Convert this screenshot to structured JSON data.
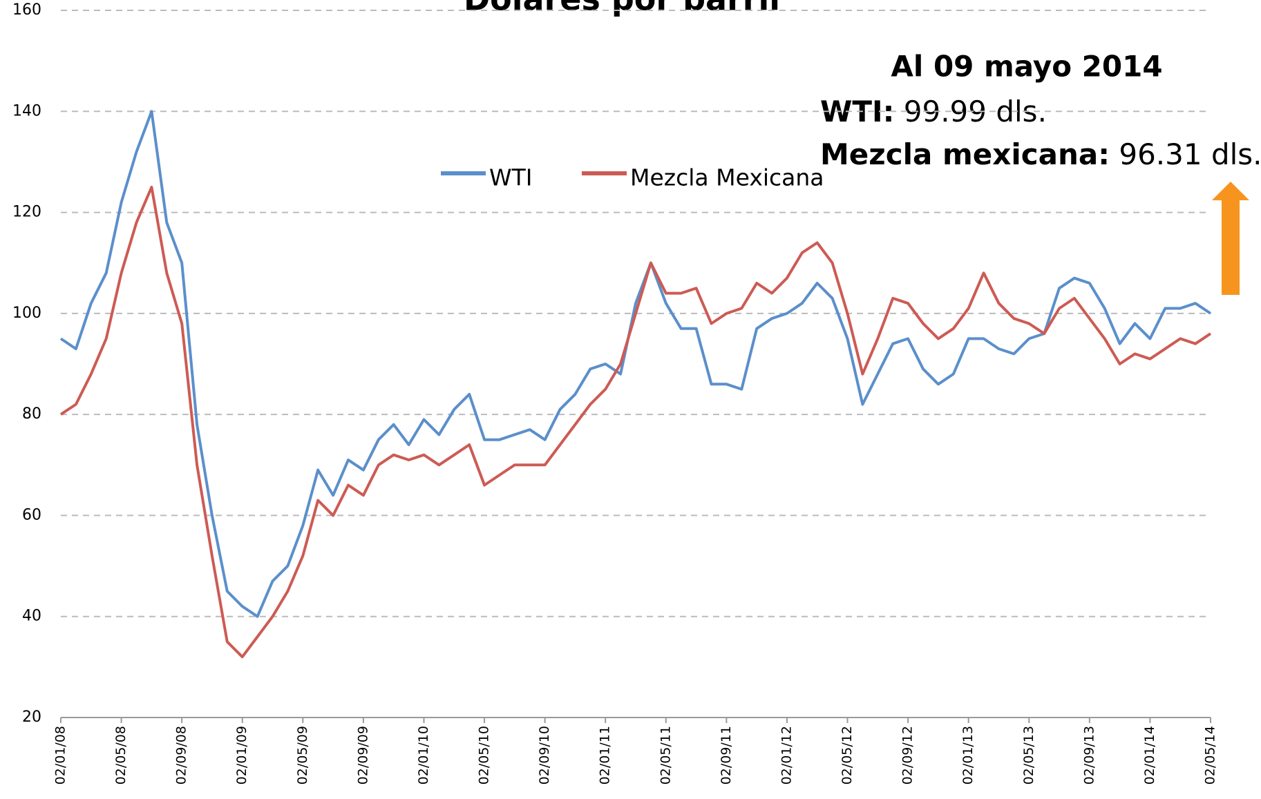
{
  "chart_data": {
    "type": "line",
    "title": "Dólares por barril",
    "categories": [
      "02/01/08",
      null,
      null,
      null,
      "02/05/08",
      null,
      null,
      null,
      "02/09/08",
      null,
      null,
      null,
      "02/01/09",
      null,
      null,
      null,
      "02/05/09",
      null,
      null,
      null,
      "02/09/09",
      null,
      null,
      null,
      "02/01/10",
      null,
      null,
      null,
      "02/05/10",
      null,
      null,
      null,
      "02/09/10",
      null,
      null,
      null,
      "02/01/11",
      null,
      null,
      null,
      "02/05/11",
      null,
      null,
      null,
      "02/09/11",
      null,
      null,
      null,
      "02/01/12",
      null,
      null,
      null,
      "02/05/12",
      null,
      null,
      null,
      "02/09/12",
      null,
      null,
      null,
      "02/01/13",
      null,
      null,
      null,
      "02/05/13",
      null,
      null,
      null,
      "02/09/13",
      null,
      null,
      null,
      "02/01/14",
      null,
      null,
      null,
      "02/05/14"
    ],
    "series": [
      {
        "name": "WTI",
        "color": "#5b8fcb",
        "values": [
          95,
          93,
          102,
          108,
          122,
          132,
          140,
          118,
          110,
          78,
          60,
          45,
          42,
          40,
          47,
          50,
          58,
          69,
          64,
          71,
          69,
          75,
          78,
          74,
          79,
          76,
          81,
          84,
          75,
          75,
          76,
          77,
          75,
          81,
          84,
          89,
          90,
          88,
          102,
          110,
          102,
          97,
          97,
          86,
          86,
          85,
          97,
          99,
          100,
          102,
          106,
          103,
          95,
          82,
          88,
          94,
          95,
          89,
          86,
          88,
          95,
          95,
          93,
          92,
          95,
          96,
          105,
          107,
          106,
          101,
          94,
          98,
          95,
          101,
          101,
          102,
          100
        ]
      },
      {
        "name": "Mezcla Mexicana",
        "color": "#cd5b54",
        "values": [
          80,
          82,
          88,
          95,
          108,
          118,
          125,
          108,
          98,
          70,
          52,
          35,
          32,
          36,
          40,
          45,
          52,
          63,
          60,
          66,
          64,
          70,
          72,
          71,
          72,
          70,
          72,
          74,
          66,
          68,
          70,
          70,
          70,
          74,
          78,
          82,
          85,
          90,
          100,
          110,
          104,
          104,
          105,
          98,
          100,
          101,
          106,
          104,
          107,
          112,
          114,
          110,
          100,
          88,
          95,
          103,
          102,
          98,
          95,
          97,
          101,
          108,
          102,
          99,
          98,
          96,
          101,
          103,
          99,
          95,
          90,
          92,
          91,
          93,
          95,
          94,
          96
        ]
      }
    ],
    "ylim": [
      20,
      160
    ],
    "yticks": [
      20,
      40,
      60,
      80,
      100,
      120,
      140,
      160
    ],
    "grid": true,
    "legend": "top",
    "annotations": {
      "date": "Al 09 mayo 2014",
      "wti_label": "WTI:",
      "wti_value": "99.99 dls.",
      "mezcla_label": "Mezcla mexicana:",
      "mezcla_value": "96.31 dls."
    }
  }
}
